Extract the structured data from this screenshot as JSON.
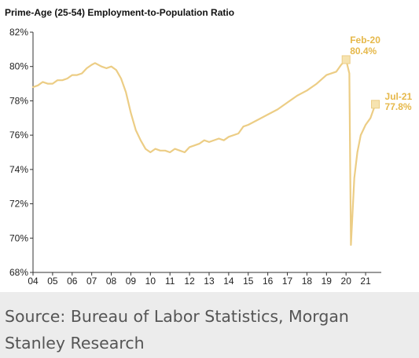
{
  "caption": "Source: Bureau of Labor Statistics, Morgan Stanley Research",
  "colors": {
    "line": "#eccd85",
    "annotation": "#e6b84a",
    "marker_fill": "#f6e3b0"
  },
  "chart_data": {
    "type": "line",
    "title": "Prime-Age (25-54) Employment-to-Population Ratio",
    "xlabel": "",
    "ylabel": "",
    "x_tick_labels": [
      "04",
      "05",
      "06",
      "07",
      "08",
      "09",
      "10",
      "11",
      "12",
      "13",
      "14",
      "15",
      "16",
      "17",
      "18",
      "19",
      "20",
      "21"
    ],
    "y_ticks": [
      82,
      80,
      78,
      76,
      74,
      72,
      70,
      68
    ],
    "y_tick_labels": [
      "82%",
      "80%",
      "78%",
      "76%",
      "74%",
      "72%",
      "70%",
      "68%"
    ],
    "ylim": [
      68,
      82
    ],
    "xlim": [
      2004.0,
      2021.8
    ],
    "grid": false,
    "series": [
      {
        "values": [
          [
            2004.0,
            78.8
          ],
          [
            2004.25,
            78.9
          ],
          [
            2004.5,
            79.1
          ],
          [
            2004.75,
            79.0
          ],
          [
            2005.0,
            79.0
          ],
          [
            2005.25,
            79.2
          ],
          [
            2005.5,
            79.2
          ],
          [
            2005.75,
            79.3
          ],
          [
            2006.0,
            79.5
          ],
          [
            2006.25,
            79.5
          ],
          [
            2006.5,
            79.6
          ],
          [
            2006.75,
            79.9
          ],
          [
            2007.0,
            80.1
          ],
          [
            2007.17,
            80.2
          ],
          [
            2007.5,
            80.0
          ],
          [
            2007.75,
            79.9
          ],
          [
            2008.0,
            80.0
          ],
          [
            2008.25,
            79.8
          ],
          [
            2008.5,
            79.3
          ],
          [
            2008.75,
            78.5
          ],
          [
            2009.0,
            77.3
          ],
          [
            2009.25,
            76.3
          ],
          [
            2009.5,
            75.7
          ],
          [
            2009.75,
            75.2
          ],
          [
            2010.0,
            75.0
          ],
          [
            2010.25,
            75.2
          ],
          [
            2010.5,
            75.1
          ],
          [
            2010.75,
            75.1
          ],
          [
            2011.0,
            75.0
          ],
          [
            2011.25,
            75.2
          ],
          [
            2011.5,
            75.1
          ],
          [
            2011.75,
            75.0
          ],
          [
            2012.0,
            75.3
          ],
          [
            2012.5,
            75.5
          ],
          [
            2012.75,
            75.7
          ],
          [
            2013.0,
            75.6
          ],
          [
            2013.5,
            75.8
          ],
          [
            2013.75,
            75.7
          ],
          [
            2014.0,
            75.9
          ],
          [
            2014.5,
            76.1
          ],
          [
            2014.75,
            76.5
          ],
          [
            2015.0,
            76.6
          ],
          [
            2015.5,
            76.9
          ],
          [
            2016.0,
            77.2
          ],
          [
            2016.5,
            77.5
          ],
          [
            2017.0,
            77.9
          ],
          [
            2017.5,
            78.3
          ],
          [
            2018.0,
            78.6
          ],
          [
            2018.5,
            79.0
          ],
          [
            2019.0,
            79.5
          ],
          [
            2019.5,
            79.7
          ],
          [
            2019.75,
            80.1
          ],
          [
            2020.0,
            80.4
          ],
          [
            2020.17,
            79.6
          ],
          [
            2020.25,
            69.6
          ],
          [
            2020.42,
            73.5
          ],
          [
            2020.58,
            75.0
          ],
          [
            2020.75,
            76.0
          ],
          [
            2021.0,
            76.6
          ],
          [
            2021.25,
            77.0
          ],
          [
            2021.5,
            77.8
          ]
        ]
      }
    ],
    "annotations": [
      {
        "label": "Feb-20",
        "value_label": "80.4%",
        "x": 2020.0,
        "y": 80.4
      },
      {
        "label": "Jul-21",
        "value_label": "77.8%",
        "x": 2021.5,
        "y": 77.8
      }
    ]
  }
}
